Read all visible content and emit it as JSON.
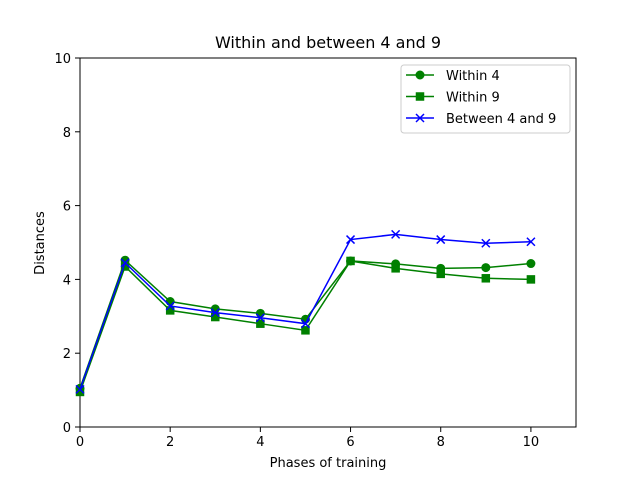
{
  "chart_data": {
    "type": "line",
    "title": "Within and between 4 and 9",
    "xlabel": "Phases of training",
    "ylabel": "Distances",
    "xlim": [
      0,
      11
    ],
    "ylim": [
      0,
      10
    ],
    "xticks": [
      0,
      2,
      4,
      6,
      8,
      10
    ],
    "yticks": [
      0,
      2,
      4,
      6,
      8,
      10
    ],
    "grid": false,
    "legend_position": "top-right",
    "x": [
      0,
      1,
      2,
      3,
      4,
      5,
      6,
      7,
      8,
      9,
      10
    ],
    "series": [
      {
        "name": "Within 4",
        "color": "#008000",
        "marker": "circle",
        "values": [
          1.05,
          4.52,
          3.4,
          3.2,
          3.08,
          2.92,
          4.5,
          4.42,
          4.3,
          4.32,
          4.43
        ]
      },
      {
        "name": "Within 9",
        "color": "#008000",
        "marker": "square",
        "values": [
          0.95,
          4.35,
          3.16,
          2.98,
          2.8,
          2.62,
          4.5,
          4.3,
          4.15,
          4.03,
          4.0
        ]
      },
      {
        "name": "Between 4 and 9",
        "color": "#0000ff",
        "marker": "x",
        "values": [
          1.02,
          4.45,
          3.28,
          3.1,
          2.96,
          2.8,
          5.08,
          5.22,
          5.08,
          4.98,
          5.02
        ]
      }
    ]
  }
}
